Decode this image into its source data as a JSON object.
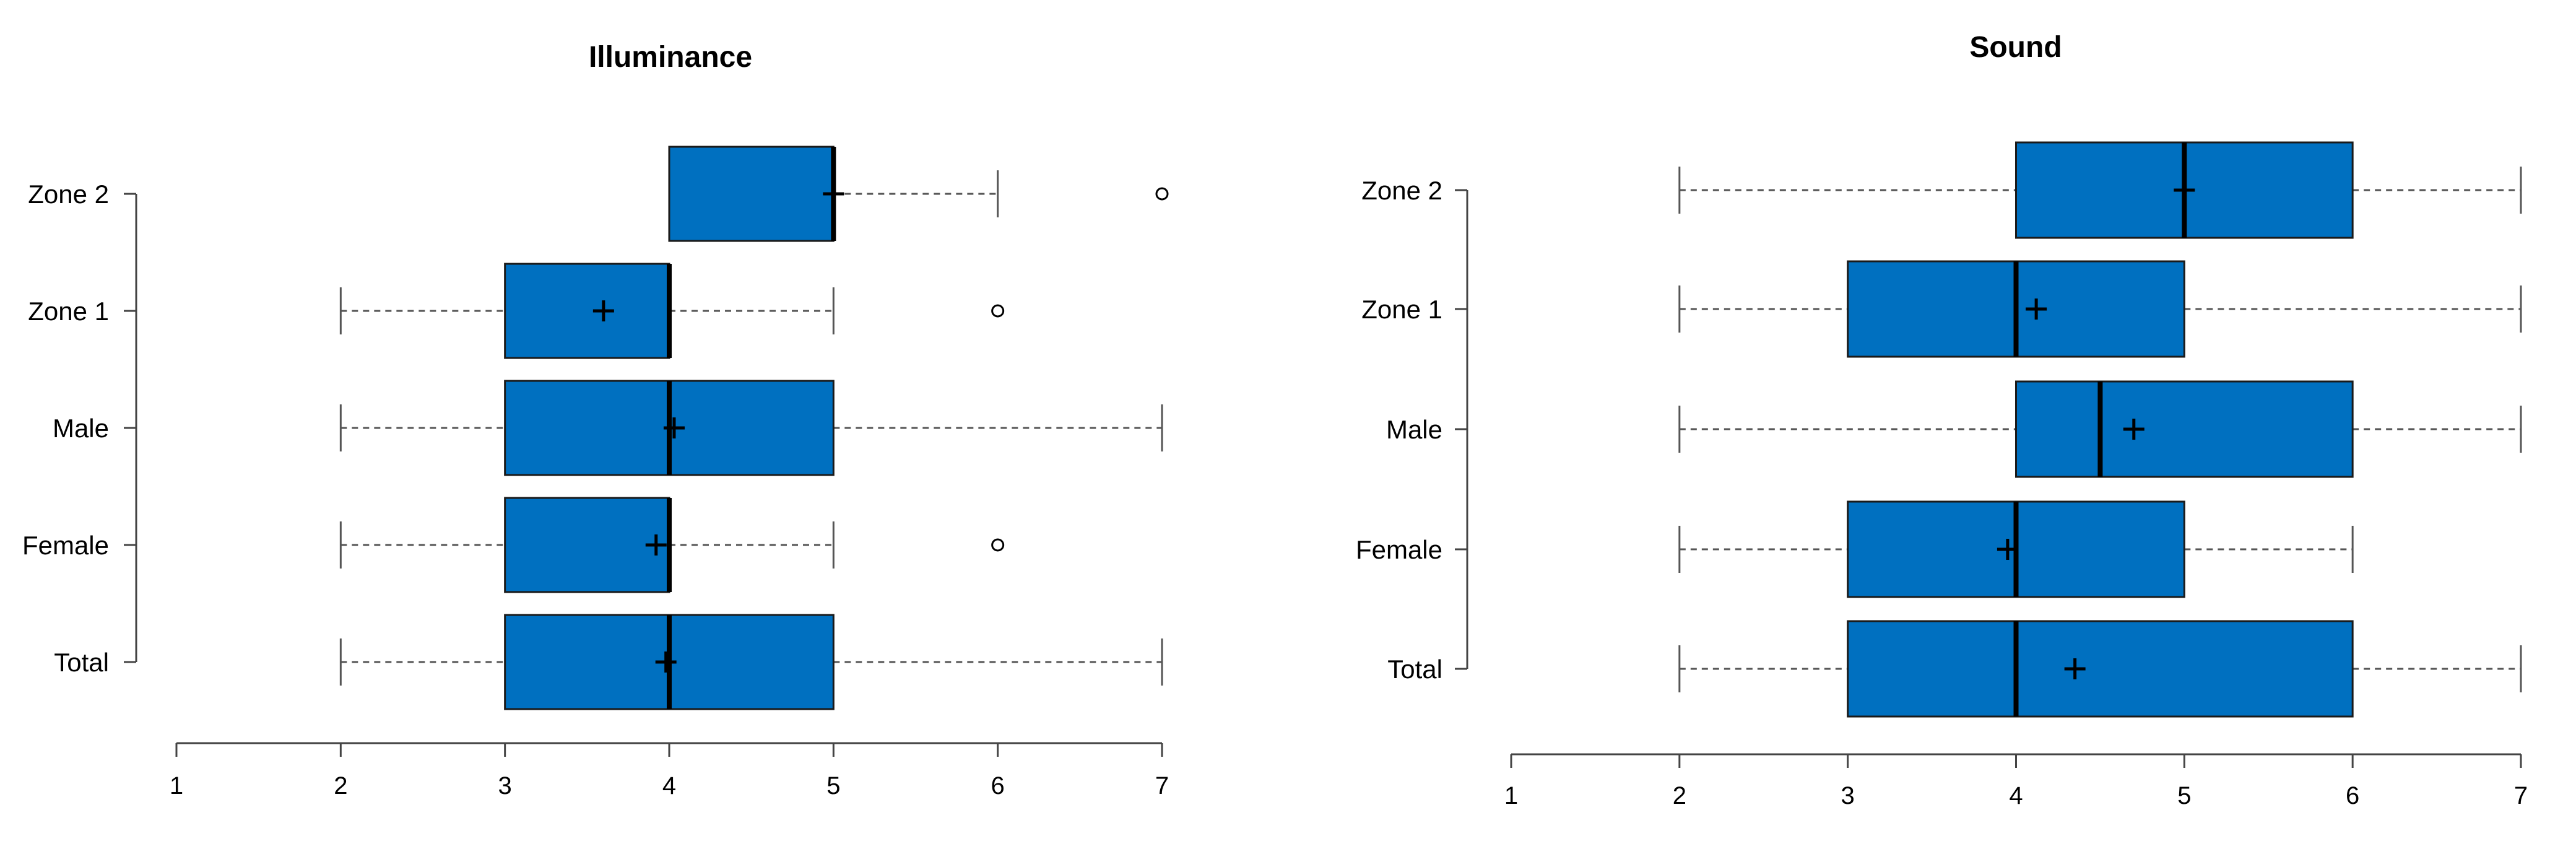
{
  "chart_data": [
    {
      "type": "boxplot",
      "title": "Illuminance",
      "orientation": "horizontal",
      "xlim": [
        1,
        7
      ],
      "ticks": [
        1,
        2,
        3,
        4,
        5,
        6,
        7
      ],
      "box_color": "#0070c0",
      "categories": [
        "Zone 2",
        "Zone 1",
        "Male",
        "Female",
        "Total"
      ],
      "boxes": [
        {
          "name": "Zone 2",
          "min": 4,
          "q1": 4,
          "median": 5,
          "q3": 5,
          "max": 6,
          "mean": 5.0,
          "outliers": [
            7
          ]
        },
        {
          "name": "Zone 1",
          "min": 2,
          "q1": 3,
          "median": 4,
          "q3": 4,
          "max": 5,
          "mean": 3.6,
          "outliers": [
            6
          ]
        },
        {
          "name": "Male",
          "min": 2,
          "q1": 3,
          "median": 4,
          "q3": 5,
          "max": 7,
          "mean": 4.03,
          "outliers": []
        },
        {
          "name": "Female",
          "min": 2,
          "q1": 3,
          "median": 4,
          "q3": 4,
          "max": 5,
          "mean": 3.92,
          "outliers": [
            6
          ]
        },
        {
          "name": "Total",
          "min": 2,
          "q1": 3,
          "median": 4,
          "q3": 5,
          "max": 7,
          "mean": 3.98,
          "outliers": []
        }
      ]
    },
    {
      "type": "boxplot",
      "title": "Sound",
      "orientation": "horizontal",
      "xlim": [
        1,
        7
      ],
      "ticks": [
        1,
        2,
        3,
        4,
        5,
        6,
        7
      ],
      "box_color": "#0070c0",
      "categories": [
        "Zone 2",
        "Zone 1",
        "Male",
        "Female",
        "Total"
      ],
      "boxes": [
        {
          "name": "Zone 2",
          "min": 2,
          "q1": 4,
          "median": 5,
          "q3": 6,
          "max": 7,
          "mean": 5.0,
          "outliers": []
        },
        {
          "name": "Zone 1",
          "min": 2,
          "q1": 3,
          "median": 4,
          "q3": 5,
          "max": 7,
          "mean": 4.12,
          "outliers": []
        },
        {
          "name": "Male",
          "min": 2,
          "q1": 4,
          "median": 4.5,
          "q3": 6,
          "max": 7,
          "mean": 4.7,
          "outliers": []
        },
        {
          "name": "Female",
          "min": 2,
          "q1": 3,
          "median": 4,
          "q3": 5,
          "max": 6,
          "mean": 3.95,
          "outliers": []
        },
        {
          "name": "Total",
          "min": 2,
          "q1": 3,
          "median": 4,
          "q3": 6,
          "max": 7,
          "mean": 4.35,
          "outliers": []
        }
      ]
    }
  ]
}
